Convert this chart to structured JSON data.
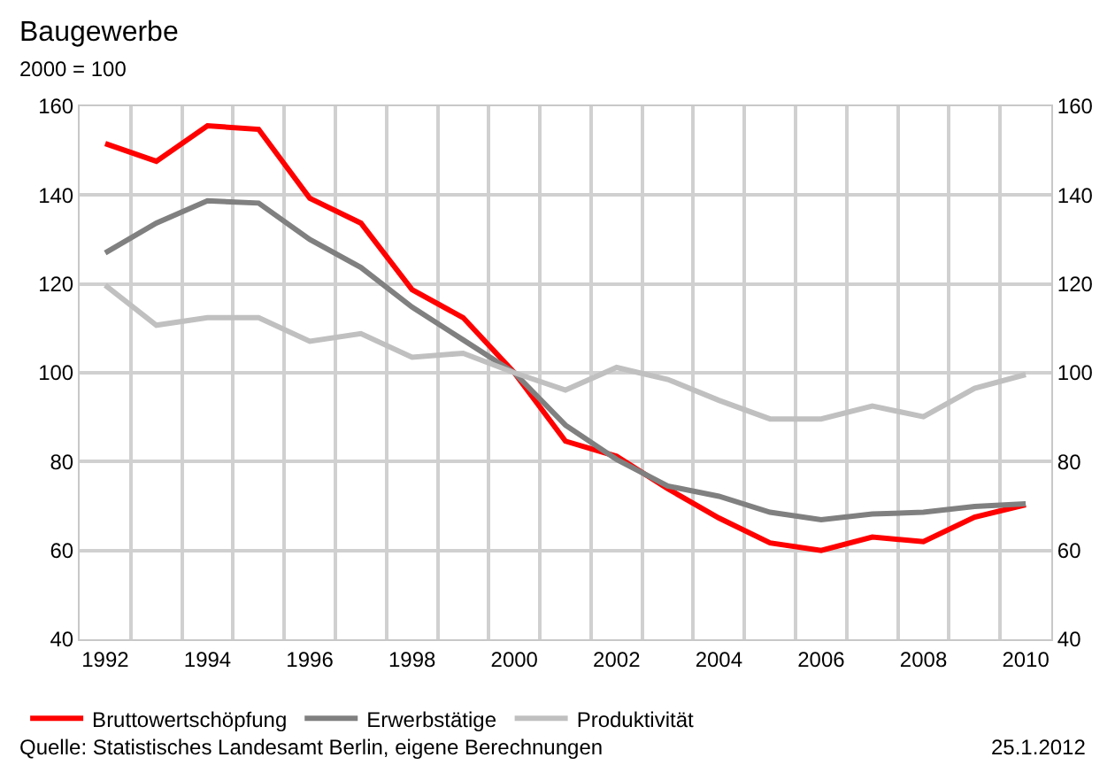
{
  "chart_data": {
    "type": "line",
    "title": "Baugewerbe",
    "subtitle": "2000 = 100",
    "categories": [
      "1992",
      null,
      "1994",
      null,
      "1996",
      null,
      "1998",
      null,
      "2000",
      null,
      "2002",
      null,
      "2004",
      null,
      "2006",
      null,
      "2008",
      null,
      "2010"
    ],
    "series": [
      {
        "name": "Bruttowertschöpfung",
        "color": "#ff0000",
        "values": [
          151.6,
          147.6,
          155.6,
          154.8,
          139.3,
          133.7,
          118.7,
          112.4,
          100,
          84.6,
          81.2,
          73.9,
          67.3,
          61.7,
          60,
          63,
          62,
          67.5,
          70.3
        ]
      },
      {
        "name": "Erwerbstätige",
        "color": "#808080",
        "values": [
          127,
          133.7,
          138.7,
          138.2,
          130,
          123.7,
          114.8,
          107.4,
          100,
          88.2,
          80.5,
          74.5,
          72.2,
          68.6,
          66.9,
          68.2,
          68.6,
          69.9,
          70.5
        ]
      },
      {
        "name": "Produktivität",
        "color": "#c0c0c0",
        "values": [
          119.7,
          110.7,
          112.4,
          112.4,
          107.1,
          108.8,
          103.5,
          104.4,
          100,
          96.1,
          101.2,
          98.5,
          93.8,
          89.6,
          89.6,
          92.5,
          90.1,
          96.5,
          99.6
        ]
      }
    ],
    "ylim": [
      40,
      160
    ],
    "yticks": [
      40,
      60,
      80,
      100,
      120,
      140,
      160
    ],
    "y2lim": [
      40,
      160
    ],
    "y2ticks": [
      40,
      60,
      80,
      100,
      120,
      140,
      160
    ],
    "grid": true,
    "legend": "bottom",
    "marker": "none",
    "line_style": "solid",
    "annotations": [
      "Quelle: Statistisches Landesamt Berlin, eigene Berechnungen",
      "25.1.2012"
    ]
  }
}
